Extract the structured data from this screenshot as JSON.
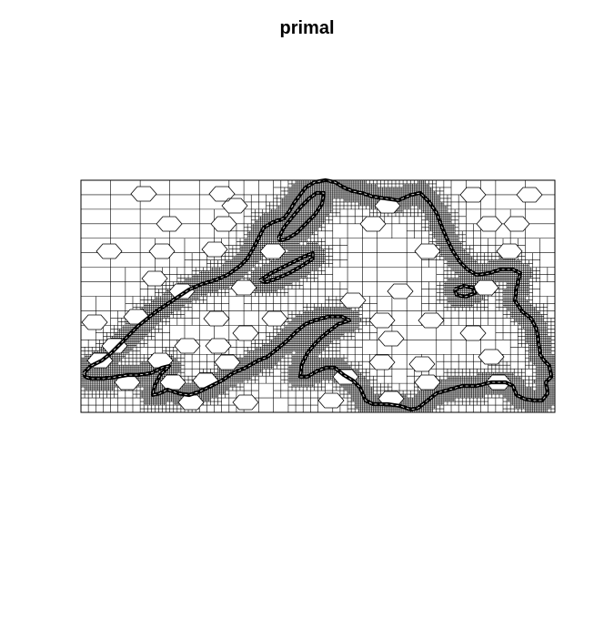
{
  "figure": {
    "title": "primal"
  },
  "diagram": {
    "type": "adaptive-quadtree-mesh",
    "line_color": "#000000",
    "background": "#ffffff",
    "region_fill": "none",
    "boundary_color": "#000000"
  }
}
